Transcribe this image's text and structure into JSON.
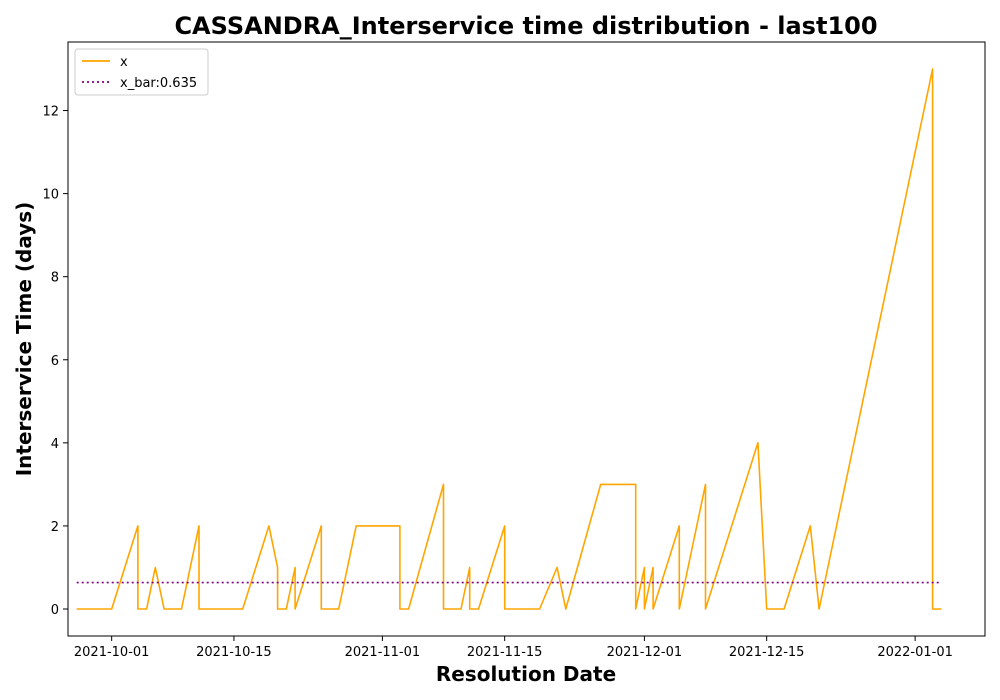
{
  "chart_data": {
    "type": "line",
    "title": "CASSANDRA_Interservice time distribution - last100",
    "xlabel": "Resolution Date",
    "ylabel": "Interservice Time (days)",
    "x_range": [
      "2021-09-26",
      "2022-01-09"
    ],
    "ylim": [
      -0.65,
      13.65
    ],
    "x_ticks": [
      "2021-10-01",
      "2021-10-15",
      "2021-11-01",
      "2021-11-15",
      "2021-12-01",
      "2021-12-15",
      "2022-01-01"
    ],
    "y_ticks": [
      0,
      2,
      4,
      6,
      8,
      10,
      12
    ],
    "grid": false,
    "legend": {
      "position": "top-left",
      "entries": [
        "x",
        "x_bar:0.635"
      ]
    },
    "colors": {
      "x": "#ffa500",
      "x_bar": "#800080"
    },
    "series": [
      {
        "name": "x",
        "style": "solid",
        "points": [
          [
            "2021-09-27",
            0
          ],
          [
            "2021-10-01",
            0
          ],
          [
            "2021-10-04",
            2
          ],
          [
            "2021-10-04",
            0
          ],
          [
            "2021-10-05",
            0
          ],
          [
            "2021-10-06",
            1
          ],
          [
            "2021-10-07",
            0
          ],
          [
            "2021-10-09",
            0
          ],
          [
            "2021-10-11",
            2
          ],
          [
            "2021-10-11",
            0
          ],
          [
            "2021-10-16",
            0
          ],
          [
            "2021-10-19",
            2
          ],
          [
            "2021-10-20",
            1
          ],
          [
            "2021-10-20",
            0
          ],
          [
            "2021-10-21",
            0
          ],
          [
            "2021-10-22",
            1
          ],
          [
            "2021-10-22",
            0
          ],
          [
            "2021-10-25",
            2
          ],
          [
            "2021-10-25",
            0
          ],
          [
            "2021-10-27",
            0
          ],
          [
            "2021-10-29",
            2
          ],
          [
            "2021-11-03",
            2
          ],
          [
            "2021-11-03",
            0
          ],
          [
            "2021-11-04",
            0
          ],
          [
            "2021-11-08",
            3
          ],
          [
            "2021-11-08",
            0
          ],
          [
            "2021-11-10",
            0
          ],
          [
            "2021-11-11",
            1
          ],
          [
            "2021-11-11",
            0
          ],
          [
            "2021-11-12",
            0
          ],
          [
            "2021-11-15",
            2
          ],
          [
            "2021-11-15",
            0
          ],
          [
            "2021-11-19",
            0
          ],
          [
            "2021-11-21",
            1
          ],
          [
            "2021-11-22",
            0
          ],
          [
            "2021-11-26",
            3
          ],
          [
            "2021-11-30",
            3
          ],
          [
            "2021-11-30",
            0
          ],
          [
            "2021-12-01",
            1
          ],
          [
            "2021-12-01",
            0
          ],
          [
            "2021-12-02",
            1
          ],
          [
            "2021-12-02",
            0
          ],
          [
            "2021-12-05",
            2
          ],
          [
            "2021-12-05",
            0
          ],
          [
            "2021-12-08",
            3
          ],
          [
            "2021-12-08",
            0
          ],
          [
            "2021-12-14",
            4
          ],
          [
            "2021-12-15",
            0
          ],
          [
            "2021-12-17",
            0
          ],
          [
            "2021-12-20",
            2
          ],
          [
            "2021-12-21",
            0
          ],
          [
            "2022-01-03",
            13
          ],
          [
            "2022-01-03",
            0
          ],
          [
            "2022-01-04",
            0
          ]
        ]
      },
      {
        "name": "x_bar:0.635",
        "style": "dotted",
        "points": [
          [
            "2021-09-27",
            0.635
          ],
          [
            "2022-01-04",
            0.635
          ]
        ]
      }
    ]
  }
}
